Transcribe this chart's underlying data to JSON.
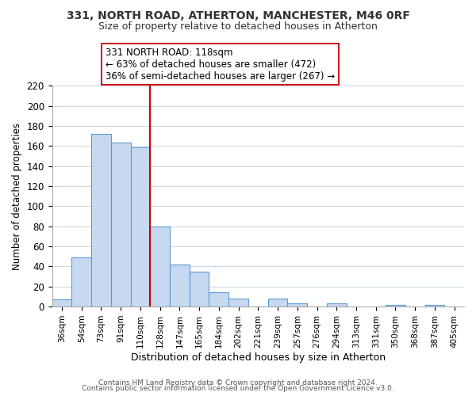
{
  "title": "331, NORTH ROAD, ATHERTON, MANCHESTER, M46 0RF",
  "subtitle": "Size of property relative to detached houses in Atherton",
  "xlabel": "Distribution of detached houses by size in Atherton",
  "ylabel": "Number of detached properties",
  "bar_labels": [
    "36sqm",
    "54sqm",
    "73sqm",
    "91sqm",
    "110sqm",
    "128sqm",
    "147sqm",
    "165sqm",
    "184sqm",
    "202sqm",
    "221sqm",
    "239sqm",
    "257sqm",
    "276sqm",
    "294sqm",
    "313sqm",
    "331sqm",
    "350sqm",
    "368sqm",
    "387sqm",
    "405sqm"
  ],
  "bar_values": [
    7,
    49,
    172,
    163,
    159,
    80,
    42,
    35,
    14,
    8,
    0,
    8,
    3,
    0,
    3,
    0,
    0,
    2,
    0,
    2,
    0
  ],
  "bar_color": "#c6d9f0",
  "bar_edge_color": "#5b9bd5",
  "vline_x": 4.5,
  "vline_color": "#cc0000",
  "annotation_title": "331 NORTH ROAD: 118sqm",
  "annotation_line1": "← 63% of detached houses are smaller (472)",
  "annotation_line2": "36% of semi-detached houses are larger (267) →",
  "annotation_box_color": "#ffffff",
  "annotation_box_edge": "#cc0000",
  "ylim": [
    0,
    220
  ],
  "yticks": [
    0,
    20,
    40,
    60,
    80,
    100,
    120,
    140,
    160,
    180,
    200,
    220
  ],
  "footer1": "Contains HM Land Registry data © Crown copyright and database right 2024.",
  "footer2": "Contains public sector information licensed under the Open Government Licence v3.0.",
  "bg_color": "#ffffff",
  "grid_color": "#c8d4e8"
}
